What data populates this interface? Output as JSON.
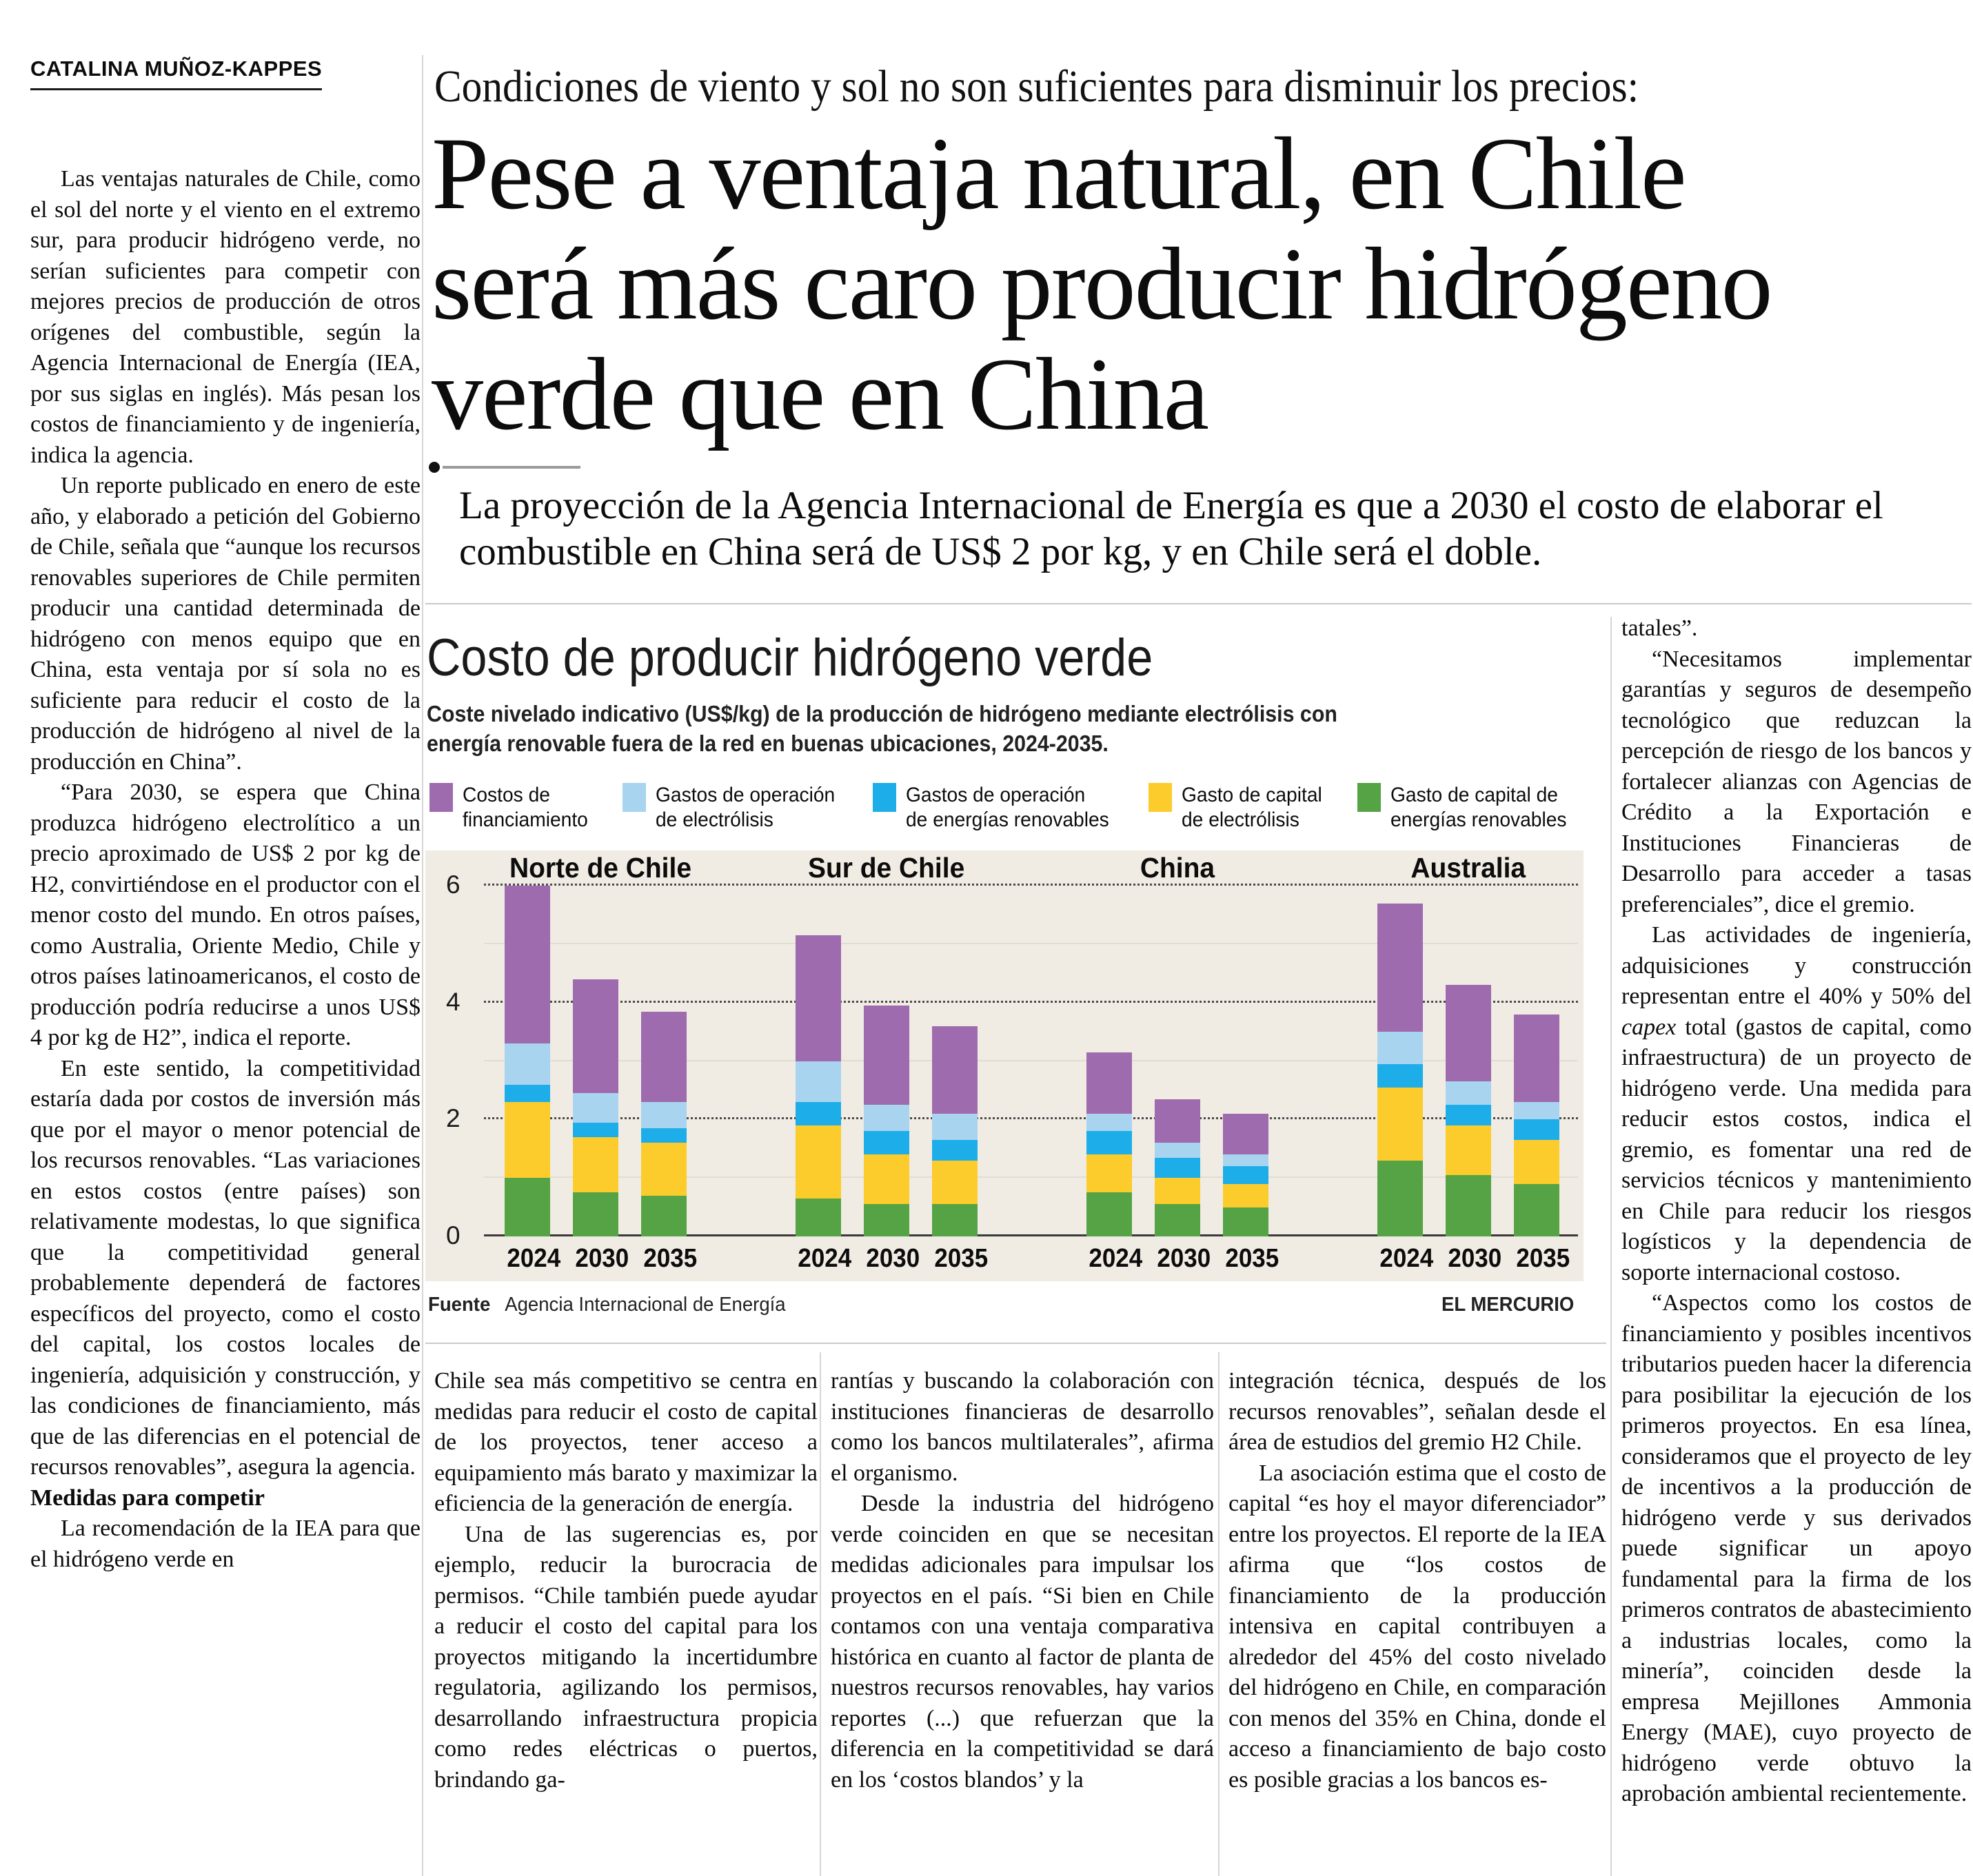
{
  "byline": "CATALINA MUÑOZ-KAPPES",
  "kicker": "Condiciones de viento y sol no son suficientes para disminuir los precios:",
  "headline_lines": [
    "Pese a ventaja natural, en Chile",
    "será más caro producir hidrógeno",
    "verde que en China"
  ],
  "deck": "La proyección de la Agencia Internacional de Energía es que a 2030 el costo de elaborar el combustible en China será de US$ 2 por kg, y en Chile será el doble.",
  "left_column": {
    "paragraphs": [
      "Las ventajas naturales de Chile, como el sol del norte y el viento en el extremo sur, para producir hidrógeno verde, no serían suficientes para competir con mejores precios de producción de otros orígenes del combustible, según la Agencia Internacional de Energía (IEA, por sus siglas en inglés). Más pesan los costos de financiamiento y de ingeniería, indica la agencia.",
      "Un reporte publicado en enero de este año, y elaborado a petición del Gobierno de Chile, señala que “aunque los recursos renovables superiores de Chile permiten producir una cantidad determinada de hidrógeno con menos equipo que en China, esta ventaja por sí sola no es suficiente para reducir el costo de la producción de hidrógeno al nivel de la producción en China”.",
      "“Para 2030, se espera que China produzca hidrógeno electrolítico a un precio aproximado de US$ 2 por kg de H2, convirtiéndose en el productor con el menor costo del mundo. En otros países, como Australia, Oriente Medio, Chile y otros países latinoamericanos, el costo de producción podría reducirse a unos US$ 4 por kg de H2”, indica el reporte.",
      "En este sentido, la competitividad estaría dada por costos de inversión más que por el mayor o menor potencial de los recursos renovables. “Las variaciones en estos costos (entre países) son relativamente modestas, lo que significa que la competitividad general probablemente dependerá de factores específicos del proyecto, como el costo del capital, los costos locales de ingeniería, adquisición y construcción, y las condiciones de financiamiento, más que de las diferencias en el potencial de recursos renovables”, asegura la agencia."
    ],
    "subhead": "Medidas para competir",
    "closing_paragraph": "La recomendación de la IEA para que el hidrógeno verde en"
  },
  "chart": {
    "title": "Costo de producir hidrógeno verde",
    "subtitle": "Coste nivelado indicativo (US$/kg) de la producción de hidrógeno mediante electrólisis con energía renovable fuera de la red en buenas ubicaciones, 2024-2035.",
    "source_label": "Fuente",
    "source": "Agencia Internacional de Energía",
    "credit": "EL MERCURIO"
  },
  "chart_data": {
    "type": "bar",
    "stacked": true,
    "title": "Costo de producir hidrógeno verde",
    "ylabel": "US$/kg",
    "ylim": [
      0,
      6.6
    ],
    "y_ticks": [
      0,
      2,
      4,
      6
    ],
    "grid": "dotted horizontal at 2, 4, 6",
    "legend_position": "top",
    "series": [
      {
        "name": "Gasto de capital de\nenergías renovables",
        "color": "#55a345"
      },
      {
        "name": "Gasto de capital\nde electrólisis",
        "color": "#fbcc2b"
      },
      {
        "name": "Gastos de operación\nde energías renovables",
        "color": "#1daee9"
      },
      {
        "name": "Gastos de operación\nde electrólisis",
        "color": "#a8d4f0"
      },
      {
        "name": "Costos de\nfinanciamiento",
        "color": "#9d6bae"
      }
    ],
    "legend_order_note": "legend shown left-to-right as reverse of stacking order",
    "groups": [
      {
        "name": "Norte de Chile",
        "years": [
          "2024",
          "2030",
          "2035"
        ],
        "values": [
          [
            1.0,
            1.3,
            0.3,
            0.7,
            2.7
          ],
          [
            0.75,
            0.95,
            0.25,
            0.5,
            1.95
          ],
          [
            0.7,
            0.9,
            0.25,
            0.45,
            1.55
          ]
        ],
        "totals": [
          6.0,
          4.4,
          3.85
        ]
      },
      {
        "name": "Sur de Chile",
        "years": [
          "2024",
          "2030",
          "2035"
        ],
        "values": [
          [
            0.65,
            1.25,
            0.4,
            0.7,
            2.15
          ],
          [
            0.55,
            0.85,
            0.4,
            0.45,
            1.7
          ],
          [
            0.55,
            0.75,
            0.35,
            0.45,
            1.5
          ]
        ],
        "totals": [
          5.15,
          3.95,
          3.6
        ]
      },
      {
        "name": "China",
        "years": [
          "2024",
          "2030",
          "2035"
        ],
        "values": [
          [
            0.75,
            0.65,
            0.4,
            0.3,
            1.05
          ],
          [
            0.55,
            0.45,
            0.35,
            0.25,
            0.75
          ],
          [
            0.5,
            0.4,
            0.3,
            0.2,
            0.7
          ]
        ],
        "totals": [
          3.15,
          2.35,
          2.1
        ]
      },
      {
        "name": "Australia",
        "years": [
          "2024",
          "2030",
          "2035"
        ],
        "values": [
          [
            1.3,
            1.25,
            0.4,
            0.55,
            2.2
          ],
          [
            1.05,
            0.85,
            0.35,
            0.4,
            1.65
          ],
          [
            0.9,
            0.75,
            0.35,
            0.3,
            1.5
          ]
        ],
        "totals": [
          5.7,
          4.3,
          3.8
        ]
      }
    ]
  },
  "bottom_columns": {
    "col1": {
      "fragment": "Chile sea más competitivo se centra en medidas para reducir el costo de capital de los proyectos, tener acceso a equipamiento más barato y maximizar la eficiencia de la generación de energía.",
      "paragraph": "Una de las sugerencias es, por ejemplo, reducir la burocracia de permisos. “Chile también puede ayudar a reducir el costo del capital para los proyectos mitigando la incertidumbre regulatoria, agilizando los permisos, desarrollando infraestructura propicia como redes eléctricas o puertos, brindando ga-"
    },
    "col2": {
      "fragment": "rantías y buscando la colaboración con instituciones financieras de desarrollo como los bancos multilaterales”, afirma el organismo.",
      "paragraph": "Desde la industria del hidrógeno verde coinciden en que se necesitan medidas adicionales para impulsar los proyectos en el país. “Si bien en Chile contamos con una ventaja comparativa histórica en cuanto al factor de planta de nuestros recursos renovables, hay varios reportes (...) que refuerzan que la diferencia en la competitividad se dará en los ‘costos blandos’ y la"
    },
    "col3": {
      "fragment": "integración técnica, después de los recursos renovables”, señalan desde el área de estudios del gremio H2 Chile.",
      "paragraph": "La asociación estima que el costo de capital “es hoy el mayor diferenciador” entre los proyectos. El reporte de la IEA afirma que “los costos de financiamiento de la producción intensiva en capital contribuyen a alrededor del 45% del costo nivelado del hidrógeno en Chile, en comparación con menos del 35% en China, donde el acceso a financiamiento de bajo costo es posible gracias a los bancos es-"
    }
  },
  "right_column": {
    "fragment": "tatales”.",
    "p1": "“Necesitamos implementar garantías y seguros de desempeño tecnológico que reduzcan la percepción de riesgo de los bancos y fortalecer alianzas con Agencias de Crédito a la Exportación e Instituciones Financieras de Desarrollo para acceder a tasas preferenciales”, dice el gremio.",
    "p2_pre": "Las actividades de ingeniería, adquisiciones y construcción representan entre el 40% y 50% del ",
    "p2_italic": "capex",
    "p2_post": " total (gastos de capital, como infraestructura) de un proyecto de hidrógeno verde. Una medida para reducir estos costos, indica el gremio, es fomentar una red de servicios técnicos y mantenimiento en Chile para reducir los riesgos logísticos y la dependencia de soporte internacional costoso.",
    "p3": "“Aspectos como los costos de financiamiento y posibles incentivos tributarios pueden hacer la diferencia para posibilitar la ejecución de los primeros proyectos. En esa línea, consideramos que el proyecto de ley de incentivos a la producción de hidrógeno verde y sus derivados puede significar un apoyo fundamental para la firma de los primeros contratos de abastecimiento a industrias locales, como la minería”, coinciden desde la empresa Mejillones Ammonia Energy (MAE), cuyo proyecto de hidrógeno verde obtuvo la aprobación ambiental recientemente."
  }
}
